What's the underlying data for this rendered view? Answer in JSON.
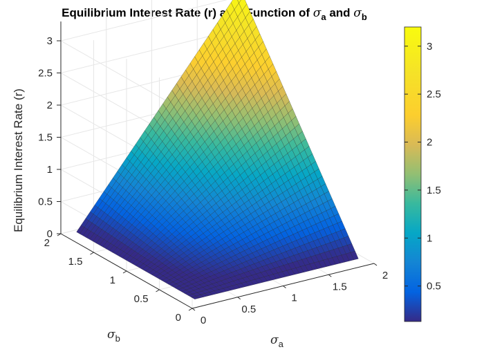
{
  "chart_data": {
    "type": "surface",
    "title": "Equilibrium Interest Rate (r) as a Function of σa and σb",
    "title_parts": {
      "prefix": "Equilibrium Interest Rate (r) as a Function of ",
      "sym_a": "σ",
      "sub_a": "a",
      "middle": " and ",
      "sym_b": "σ",
      "sub_b": "b"
    },
    "xlabel": {
      "symbol": "σ",
      "subscript": "a"
    },
    "ylabel": {
      "symbol": "σ",
      "subscript": "b"
    },
    "zlabel": "Equilibrium Interest Rate (r)",
    "xlim": [
      0,
      2
    ],
    "ylim": [
      0,
      2
    ],
    "zlim": [
      0,
      3.2
    ],
    "x_ticks": [
      "0",
      "0.5",
      "1",
      "1.5",
      "2"
    ],
    "y_ticks": [
      "0",
      "0.5",
      "1",
      "1.5",
      "2"
    ],
    "z_ticks": [
      "0",
      "0.5",
      "1",
      "1.5",
      "2",
      "2.5",
      "3"
    ],
    "corner_values": [
      {
        "sigma_a": 0.1,
        "sigma_b": 0.1,
        "r": 0.05
      },
      {
        "sigma_a": 1.9,
        "sigma_b": 0.1,
        "r": 0.05
      },
      {
        "sigma_a": 0.1,
        "sigma_b": 1.9,
        "r": 0.05
      },
      {
        "sigma_a": 1.9,
        "sigma_b": 1.9,
        "r": 3.2
      }
    ],
    "grid": true,
    "colormap": "parula",
    "colorbar": {
      "range": [
        0.13,
        3.2
      ],
      "ticks": [
        "0.5",
        "1",
        "1.5",
        "2",
        "2.5",
        "3"
      ],
      "placement": "right"
    },
    "colors": {
      "low": "#3e26a8",
      "mid": "#16b7ab",
      "high": "#f9fb15"
    }
  }
}
